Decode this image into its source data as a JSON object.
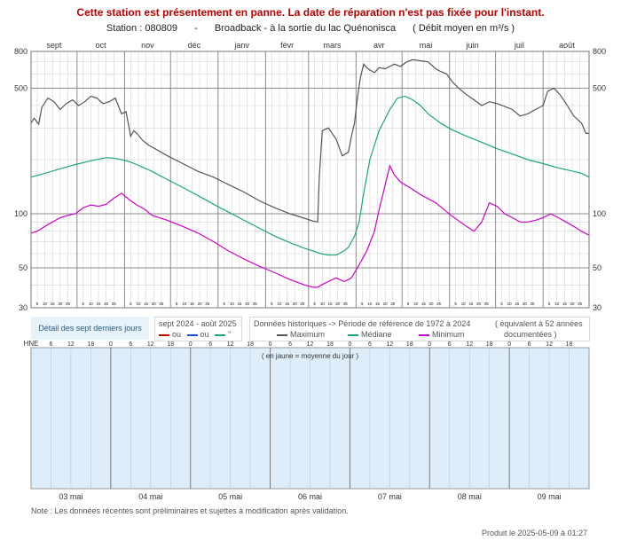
{
  "banner": "Cette station est présentement en panne. La date de réparation n'est pas fixée pour l'instant.",
  "station": {
    "label": "Station : 080809",
    "separator": "-",
    "name": "Broadback - à la sortie du lac Quénonisca",
    "unit_note": "( Débit moyen en m³/s )"
  },
  "legend": {
    "recent_days": "Détail des sept derniers jours",
    "current_period": "sept 2024 - août 2025",
    "current_row": [
      "ou",
      "ou",
      "\""
    ],
    "historic_title": "Données historiques -> Période de référence de 1972 à 2024",
    "historic_note_1": "( équivalent à 52 années",
    "historic_note_2": "documentées )",
    "maximum": "Maximum",
    "mediane": "Médiane",
    "minimum": "Minimum"
  },
  "colors": {
    "maximum": "#555555",
    "mediane": "#1aa57e",
    "minimum": "#cc00cc",
    "current": "#cc0000",
    "recent_bg": "#ddeefa"
  },
  "chart_data": [
    {
      "type": "line",
      "title": "",
      "ylabel": "",
      "y_scale": "log",
      "ylim": [
        30,
        800
      ],
      "y_ticks": [
        30,
        50,
        100,
        500,
        800
      ],
      "months": [
        "sept",
        "oct",
        "nov",
        "déc",
        "janv",
        "févr",
        "mars",
        "avr",
        "mai",
        "juin",
        "juil",
        "août"
      ],
      "day_ticks": [
        "5",
        "10",
        "15",
        "20",
        "25"
      ],
      "x_unit": "day of hydrological year (1 = 1 sept)",
      "grid": true,
      "series": [
        {
          "name": "Maximum",
          "x": [
            1,
            3,
            6,
            8,
            12,
            16,
            20,
            24,
            28,
            32,
            36,
            40,
            44,
            48,
            52,
            56,
            60,
            63,
            66,
            68,
            70,
            74,
            78,
            84,
            90,
            100,
            110,
            120,
            130,
            140,
            150,
            160,
            170,
            180,
            185,
            188,
            189,
            191,
            195,
            200,
            204,
            208,
            210,
            212,
            214,
            216,
            218,
            220,
            222,
            225,
            228,
            232,
            235,
            238,
            242,
            246,
            250,
            255,
            260,
            265,
            268,
            272,
            276,
            280,
            285,
            290,
            295,
            300,
            305,
            310,
            315,
            320,
            325,
            330,
            335,
            338,
            342,
            346,
            350,
            355,
            360,
            363,
            365
          ],
          "values": [
            320,
            340,
            315,
            390,
            440,
            420,
            380,
            410,
            430,
            400,
            420,
            450,
            440,
            410,
            420,
            440,
            360,
            370,
            270,
            290,
            280,
            255,
            240,
            225,
            210,
            190,
            172,
            160,
            145,
            132,
            118,
            108,
            100,
            94,
            91,
            90,
            160,
            290,
            300,
            260,
            210,
            220,
            270,
            320,
            450,
            580,
            680,
            650,
            630,
            610,
            650,
            640,
            660,
            680,
            660,
            700,
            720,
            710,
            700,
            640,
            620,
            600,
            540,
            500,
            460,
            430,
            400,
            420,
            410,
            395,
            380,
            350,
            360,
            380,
            400,
            480,
            500,
            460,
            410,
            350,
            320,
            280,
            280
          ]
        },
        {
          "name": "Médiane",
          "x": [
            1,
            10,
            20,
            30,
            40,
            50,
            55,
            60,
            65,
            70,
            80,
            90,
            100,
            110,
            120,
            130,
            140,
            150,
            160,
            170,
            180,
            185,
            190,
            195,
            200,
            205,
            208,
            212,
            215,
            218,
            222,
            228,
            235,
            240,
            245,
            250,
            255,
            260,
            268,
            275,
            285,
            295,
            305,
            315,
            325,
            335,
            345,
            355,
            360,
            365
          ],
          "values": [
            160,
            168,
            178,
            188,
            197,
            205,
            204,
            200,
            195,
            188,
            172,
            155,
            140,
            126,
            113,
            102,
            92,
            83,
            75,
            69,
            64,
            62,
            60,
            59,
            59,
            62,
            65,
            75,
            90,
            130,
            200,
            290,
            380,
            440,
            450,
            430,
            400,
            360,
            320,
            295,
            270,
            250,
            230,
            215,
            200,
            190,
            180,
            172,
            168,
            160
          ]
        },
        {
          "name": "Minimum",
          "x": [
            1,
            5,
            10,
            15,
            20,
            25,
            30,
            35,
            40,
            45,
            50,
            55,
            60,
            65,
            70,
            75,
            80,
            90,
            100,
            110,
            120,
            130,
            140,
            150,
            160,
            170,
            180,
            185,
            188,
            190,
            195,
            200,
            205,
            208,
            210,
            215,
            220,
            225,
            228,
            232,
            235,
            238,
            242,
            248,
            255,
            265,
            275,
            285,
            290,
            295,
            300,
            305,
            310,
            315,
            320,
            325,
            330,
            335,
            340,
            345,
            350,
            355,
            360,
            365
          ],
          "values": [
            78,
            80,
            85,
            90,
            95,
            98,
            100,
            108,
            112,
            110,
            113,
            122,
            130,
            120,
            112,
            106,
            98,
            92,
            85,
            78,
            70,
            62,
            56,
            51,
            47,
            43,
            40,
            39,
            39,
            40,
            42,
            44,
            42,
            43,
            44,
            52,
            62,
            80,
            105,
            145,
            185,
            165,
            150,
            140,
            128,
            115,
            98,
            85,
            80,
            90,
            115,
            110,
            100,
            95,
            90,
            90,
            92,
            95,
            100,
            95,
            90,
            85,
            80,
            76
          ]
        }
      ]
    },
    {
      "type": "line",
      "title": "",
      "xlabel": "",
      "x_label_top": "HNE",
      "hour_ticks": [
        "6",
        "12",
        "18",
        "0",
        "6",
        "12",
        "18",
        "0",
        "6",
        "12",
        "18",
        "0",
        "6",
        "12",
        "18",
        "0",
        "6",
        "12",
        "18",
        "0",
        "6",
        "12",
        "18",
        "0",
        "6",
        "12",
        "18"
      ],
      "days": [
        "03 mai",
        "04 mai",
        "05 mai",
        "06 mai",
        "07 mai",
        "08 mai",
        "09 mai"
      ],
      "annotation": "( en jaune = moyenne du jour )",
      "series": []
    }
  ],
  "footer_note": "Note : Les données récentes sont préliminaires et sujettes à modification après validation.",
  "produced": "Produit le 2025-05-09 à 01:27"
}
